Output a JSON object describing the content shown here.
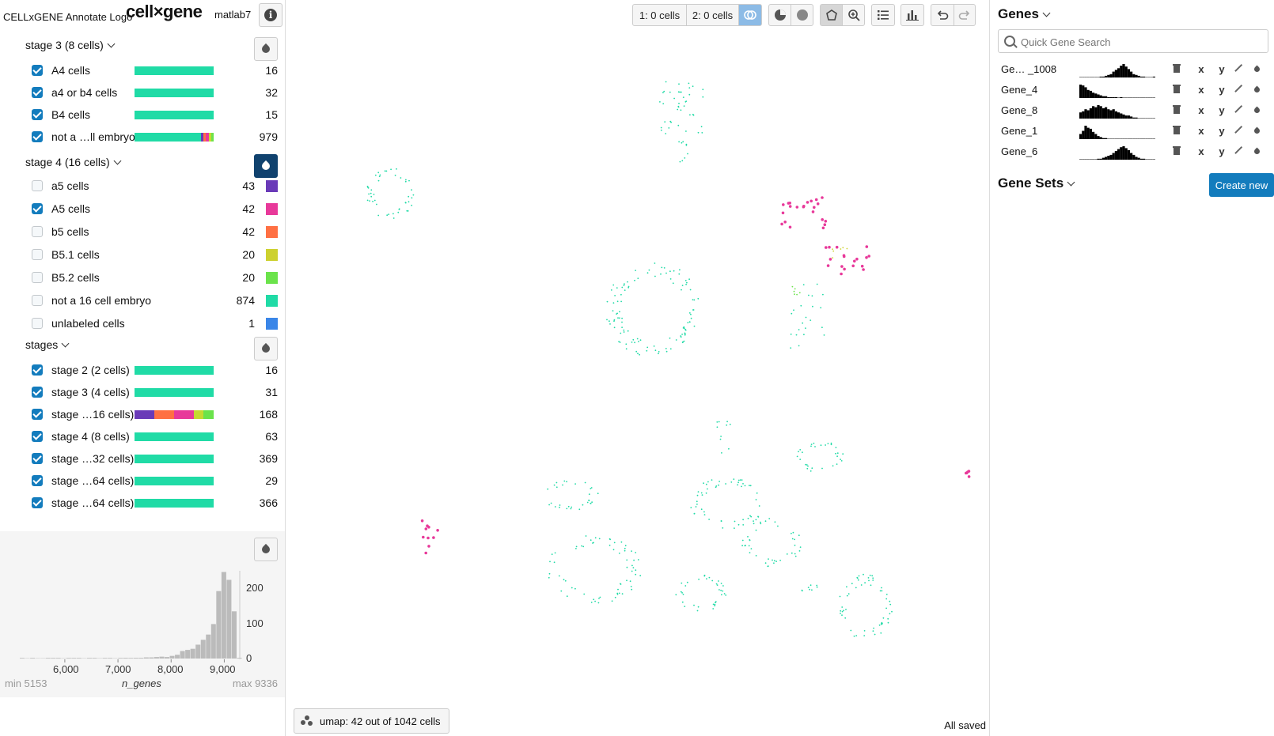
{
  "header": {
    "logo_alt": "CELLxGENE Annotate Logo",
    "brand": "cell×gene",
    "dataset": "matlab7",
    "info_icon": "info-icon"
  },
  "categories": [
    {
      "title": "stage 3 (8 cells)",
      "checkbox": "checked",
      "color_active": false,
      "items": [
        {
          "label": "A4 cells",
          "count": "16",
          "checked": true,
          "bar": [
            {
              "c": "#20dba6",
              "w": 1
            }
          ]
        },
        {
          "label": "a4 or b4 cells",
          "count": "32",
          "checked": true,
          "bar": [
            {
              "c": "#20dba6",
              "w": 1
            }
          ]
        },
        {
          "label": "B4 cells",
          "count": "15",
          "checked": true,
          "bar": [
            {
              "c": "#20dba6",
              "w": 1
            }
          ]
        },
        {
          "label": "not a …ll embryo",
          "count": "979",
          "checked": true,
          "bar": [
            {
              "c": "#20dba6",
              "w": 0.84
            },
            {
              "c": "#6a3ab8",
              "w": 0.03
            },
            {
              "c": "#ff7043",
              "w": 0.03
            },
            {
              "c": "#e8399a",
              "w": 0.04
            },
            {
              "c": "#c5d930",
              "w": 0.03
            },
            {
              "c": "#6be34b",
              "w": 0.03
            }
          ]
        }
      ]
    },
    {
      "title": "stage 4 (16 cells)",
      "checkbox": "indeterminate",
      "color_active": true,
      "items": [
        {
          "label": "a5 cells",
          "count": "43",
          "checked": false,
          "swatch": "#6a3ab8"
        },
        {
          "label": "A5 cells",
          "count": "42",
          "checked": true,
          "swatch": "#e8399a"
        },
        {
          "label": "b5 cells",
          "count": "42",
          "checked": false,
          "swatch": "#ff7043"
        },
        {
          "label": "B5.1 cells",
          "count": "20",
          "checked": false,
          "swatch": "#cdd12f"
        },
        {
          "label": "B5.2 cells",
          "count": "20",
          "checked": false,
          "swatch": "#6be34b"
        },
        {
          "label": "not a 16 cell embryo",
          "count": "874",
          "checked": false,
          "swatch": "#20dba6"
        },
        {
          "label": "unlabeled cells",
          "count": "1",
          "checked": false,
          "swatch": "#3a86e8"
        }
      ]
    },
    {
      "title": "stages",
      "checkbox": "checked",
      "color_active": false,
      "items": [
        {
          "label": "stage 2 (2 cells)",
          "count": "16",
          "checked": true,
          "bar": [
            {
              "c": "#20dba6",
              "w": 1
            }
          ]
        },
        {
          "label": "stage 3 (4 cells)",
          "count": "31",
          "checked": true,
          "bar": [
            {
              "c": "#20dba6",
              "w": 1
            }
          ]
        },
        {
          "label": "stage …16 cells)",
          "count": "168",
          "checked": true,
          "bar": [
            {
              "c": "#6a3ab8",
              "w": 0.25
            },
            {
              "c": "#ff7043",
              "w": 0.25
            },
            {
              "c": "#e8399a",
              "w": 0.25
            },
            {
              "c": "#c5d930",
              "w": 0.12
            },
            {
              "c": "#6be34b",
              "w": 0.13
            }
          ]
        },
        {
          "label": "stage 4 (8 cells)",
          "count": "63",
          "checked": true,
          "bar": [
            {
              "c": "#20dba6",
              "w": 1
            }
          ]
        },
        {
          "label": "stage …32 cells)",
          "count": "369",
          "checked": true,
          "bar": [
            {
              "c": "#20dba6",
              "w": 1
            }
          ]
        },
        {
          "label": "stage …64 cells)",
          "count": "29",
          "checked": true,
          "bar": [
            {
              "c": "#20dba6",
              "w": 1
            }
          ]
        },
        {
          "label": "stage …64 cells)",
          "count": "366",
          "checked": true,
          "bar": [
            {
              "c": "#20dba6",
              "w": 1
            }
          ]
        }
      ]
    }
  ],
  "histogram": {
    "name": "n_genes",
    "min_label": "min 5153",
    "max_label": "max 9336",
    "x_ticks": [
      "6,000",
      "7,000",
      "8,000",
      "9,000"
    ],
    "y_ticks": [
      "200",
      "100",
      "0"
    ],
    "chart_data": {
      "type": "bar",
      "xlabel": "n_genes",
      "xlim": [
        5153,
        9336
      ],
      "ylim": [
        0,
        230
      ],
      "x_ticks": [
        6000,
        7000,
        8000,
        9000
      ],
      "y_ticks": [
        0,
        100,
        200
      ],
      "values": [
        1,
        0,
        1,
        0,
        0,
        1,
        1,
        1,
        0,
        1,
        1,
        1,
        0,
        1,
        1,
        0,
        1,
        1,
        0,
        1,
        2,
        1,
        2,
        2,
        3,
        3,
        4,
        5,
        4,
        7,
        10,
        20,
        23,
        26,
        37,
        50,
        64,
        92,
        180,
        231,
        210,
        126,
        2
      ]
    }
  },
  "toolbar": {
    "selection1": "1: 0 cells",
    "selection2": "2: 0 cells"
  },
  "embedding": {
    "label": "umap: 42 out of 1042 cells",
    "status": "All saved"
  },
  "genes": {
    "title": "Genes",
    "search_placeholder": "Quick Gene Search",
    "list": [
      {
        "name": "Ge… _1008",
        "spark": [
          0,
          0,
          0,
          0,
          0,
          0,
          0,
          0,
          1,
          1,
          2,
          3,
          4,
          7,
          9,
          11,
          14,
          16,
          13,
          10,
          7,
          4,
          3,
          2,
          1,
          1,
          0,
          0,
          0,
          1
        ]
      },
      {
        "name": "Gene_4",
        "spark": [
          15,
          14,
          12,
          9,
          8,
          6,
          5,
          4,
          3,
          2,
          2,
          1,
          1,
          1,
          1,
          0,
          1,
          0,
          0,
          0,
          0,
          0,
          0,
          0,
          0,
          0,
          0,
          0,
          0,
          0
        ]
      },
      {
        "name": "Gene_8",
        "spark": [
          6,
          7,
          9,
          8,
          10,
          12,
          11,
          13,
          12,
          10,
          11,
          9,
          8,
          9,
          7,
          6,
          5,
          4,
          3,
          3,
          2,
          1,
          1,
          0,
          0,
          0,
          0,
          0,
          0,
          0
        ]
      },
      {
        "name": "Gene_1",
        "spark": [
          5,
          8,
          13,
          11,
          10,
          7,
          5,
          3,
          2,
          1,
          1,
          0,
          0,
          0,
          0,
          0,
          0,
          0,
          0,
          0,
          0,
          0,
          0,
          0,
          0,
          0,
          0,
          0,
          0,
          0
        ]
      },
      {
        "name": "Gene_6",
        "spark": [
          0,
          0,
          0,
          0,
          0,
          0,
          0,
          1,
          1,
          2,
          3,
          4,
          5,
          7,
          9,
          11,
          13,
          14,
          12,
          10,
          7,
          5,
          3,
          2,
          1,
          1,
          0,
          0,
          0,
          0
        ]
      }
    ],
    "sets_title": "Gene Sets",
    "create_label": "Create new"
  }
}
